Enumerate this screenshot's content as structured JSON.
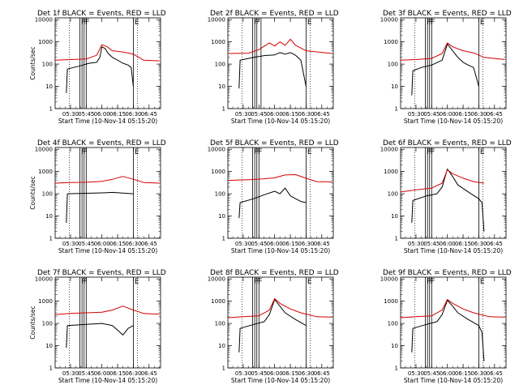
{
  "figure": {
    "colors": {
      "events": "#000000",
      "lld": "#d40000",
      "axes": "#000000",
      "background": "#ffffff"
    }
  },
  "chart_data": [
    {
      "type": "line",
      "title": "Det 1f BLACK = Events, RED = LLD",
      "xlabel": "Start Time (10-Nov-14 05:15:20)",
      "ylabel": "Counts/sec",
      "x_ticks": [
        "05:30",
        "05:45",
        "06:00",
        "06:15",
        "06:30",
        "06:45"
      ],
      "y_ticks": [
        "1",
        "10",
        "100",
        "1000",
        "10000"
      ],
      "xlim": [
        "05:15:20",
        "06:56:00"
      ],
      "ylim": [
        1,
        12000
      ],
      "y_scale": "log",
      "grid": false,
      "flag_labels": [
        "F",
        "F",
        "F",
        "E"
      ],
      "flag_lines": [
        "05:39",
        "05:41",
        "05:43",
        "05:45",
        "06:30"
      ],
      "dotted_lines": [
        "05:29",
        "06:34"
      ],
      "series": [
        {
          "name": "BLACK = Events",
          "color": "#000000",
          "x": [
            "05:26",
            "05:27",
            "05:30",
            "05:38",
            "05:48",
            "05:55",
            "05:58",
            "06:00",
            "06:03",
            "06:06",
            "06:10",
            "06:15",
            "06:20",
            "06:25",
            "06:28",
            "06:30"
          ],
          "y": [
            5,
            60,
            65,
            80,
            110,
            120,
            200,
            600,
            500,
            300,
            200,
            150,
            110,
            90,
            70,
            10
          ]
        },
        {
          "name": "RED = LLD",
          "color": "#d40000",
          "x": [
            "05:15",
            "05:30",
            "05:45",
            "05:55",
            "06:00",
            "06:05",
            "06:10",
            "06:20",
            "06:30",
            "06:40",
            "06:55"
          ],
          "y": [
            150,
            160,
            170,
            250,
            750,
            600,
            400,
            350,
            280,
            150,
            140
          ]
        }
      ]
    },
    {
      "type": "line",
      "title": "Det 2f BLACK = Events, RED = LLD",
      "xlabel": "Start Time (10-Nov-14 05:15:20)",
      "ylabel": "",
      "x_ticks": [
        "05:30",
        "05:45",
        "06:00",
        "06:15",
        "06:30",
        "06:45"
      ],
      "y_ticks": [
        "1",
        "10",
        "100",
        "1000",
        "10000"
      ],
      "xlim": [
        "05:15:20",
        "06:56:00"
      ],
      "ylim": [
        1,
        12000
      ],
      "y_scale": "log",
      "grid": false,
      "flag_labels": [
        "F",
        "F",
        "E"
      ],
      "flag_lines": [
        "05:39",
        "05:41",
        "05:43",
        "05:47",
        "06:30"
      ],
      "dotted_lines": [
        "05:29",
        "06:34"
      ],
      "series": [
        {
          "name": "BLACK = Events",
          "color": "#000000",
          "x": [
            "05:26",
            "05:27",
            "05:40",
            "05:50",
            "06:00",
            "06:05",
            "06:10",
            "06:15",
            "06:20",
            "06:25",
            "06:30"
          ],
          "y": [
            8,
            150,
            200,
            240,
            260,
            330,
            280,
            330,
            250,
            150,
            10
          ]
        },
        {
          "name": "RED = LLD",
          "color": "#d40000",
          "x": [
            "05:15",
            "05:35",
            "05:45",
            "05:55",
            "06:00",
            "06:05",
            "06:10",
            "06:15",
            "06:20",
            "06:30",
            "06:55"
          ],
          "y": [
            300,
            310,
            450,
            900,
            650,
            1000,
            700,
            1300,
            700,
            400,
            300
          ]
        }
      ]
    },
    {
      "type": "line",
      "title": "Det 3f BLACK = Events, RED = LLD",
      "xlabel": "Start Time (10-Nov-14 05:15:20)",
      "ylabel": "",
      "x_ticks": [
        "05:30",
        "05:45",
        "06:00",
        "06:15",
        "06:30",
        "06:45"
      ],
      "y_ticks": [
        "1",
        "10",
        "100",
        "1000",
        "10000"
      ],
      "xlim": [
        "05:15:20",
        "06:56:00"
      ],
      "ylim": [
        1,
        12000
      ],
      "y_scale": "log",
      "grid": false,
      "flag_labels": [
        "F",
        "F",
        "F",
        "E"
      ],
      "flag_lines": [
        "05:39",
        "05:41",
        "05:43",
        "05:45",
        "06:30"
      ],
      "dotted_lines": [
        "05:29",
        "06:34"
      ],
      "series": [
        {
          "name": "BLACK = Events",
          "color": "#000000",
          "x": [
            "05:26",
            "05:27",
            "05:35",
            "05:45",
            "05:55",
            "06:00",
            "06:05",
            "06:10",
            "06:15",
            "06:20",
            "06:25",
            "06:30"
          ],
          "y": [
            4,
            50,
            70,
            90,
            150,
            800,
            400,
            200,
            120,
            90,
            70,
            10
          ]
        },
        {
          "name": "RED = LLD",
          "color": "#d40000",
          "x": [
            "05:15",
            "05:30",
            "05:45",
            "05:55",
            "06:00",
            "06:05",
            "06:15",
            "06:25",
            "06:35",
            "06:55"
          ],
          "y": [
            150,
            160,
            180,
            300,
            900,
            600,
            400,
            320,
            200,
            160
          ]
        }
      ]
    },
    {
      "type": "line",
      "title": "Det 4f BLACK = Events, RED = LLD",
      "xlabel": "Start Time (10-Nov-14 05:15:20)",
      "ylabel": "Counts/sec",
      "x_ticks": [
        "05:30",
        "05:45",
        "06:00",
        "06:15",
        "06:30",
        "06:45"
      ],
      "y_ticks": [
        "1",
        "10",
        "100",
        "1000",
        "10000"
      ],
      "xlim": [
        "05:15:20",
        "06:56:00"
      ],
      "ylim": [
        1,
        12000
      ],
      "y_scale": "log",
      "grid": false,
      "flag_labels": [
        "F",
        "F",
        "E"
      ],
      "flag_lines": [
        "05:39",
        "05:41",
        "05:43",
        "05:45",
        "06:30"
      ],
      "dotted_lines": [
        "05:29",
        "06:34"
      ],
      "series": [
        {
          "name": "BLACK = Events",
          "color": "#000000",
          "x": [
            "05:26",
            "05:27",
            "05:45",
            "06:00",
            "06:10",
            "06:20",
            "06:30"
          ],
          "y": [
            5,
            100,
            105,
            110,
            115,
            108,
            100
          ]
        },
        {
          "name": "RED = LLD",
          "color": "#d40000",
          "x": [
            "05:15",
            "05:30",
            "05:45",
            "06:00",
            "06:10",
            "06:20",
            "06:30",
            "06:40",
            "06:55"
          ],
          "y": [
            300,
            320,
            330,
            360,
            450,
            600,
            450,
            320,
            300
          ]
        }
      ]
    },
    {
      "type": "line",
      "title": "Det 5f BLACK = Events, RED = LLD",
      "xlabel": "Start Time (10-Nov-14 05:15:20)",
      "ylabel": "",
      "x_ticks": [
        "05:30",
        "05:45",
        "06:00",
        "06:15",
        "06:30",
        "06:45"
      ],
      "y_ticks": [
        "1",
        "10",
        "100",
        "1000",
        "10000"
      ],
      "xlim": [
        "05:15:20",
        "06:56:00"
      ],
      "ylim": [
        1,
        12000
      ],
      "y_scale": "log",
      "grid": false,
      "flag_labels": [
        "F",
        "F",
        "F",
        "E"
      ],
      "flag_lines": [
        "05:39",
        "05:41",
        "05:43",
        "05:45",
        "06:30"
      ],
      "dotted_lines": [
        "05:29",
        "06:34"
      ],
      "series": [
        {
          "name": "BLACK = Events",
          "color": "#000000",
          "x": [
            "05:26",
            "05:27",
            "05:40",
            "05:50",
            "06:00",
            "06:05",
            "06:10",
            "06:15",
            "06:20",
            "06:25",
            "06:30"
          ],
          "y": [
            8,
            40,
            60,
            90,
            130,
            100,
            180,
            80,
            60,
            45,
            40
          ]
        },
        {
          "name": "RED = LLD",
          "color": "#d40000",
          "x": [
            "05:15",
            "05:35",
            "05:50",
            "06:00",
            "06:10",
            "06:20",
            "06:30",
            "06:40",
            "06:55"
          ],
          "y": [
            400,
            430,
            470,
            520,
            700,
            720,
            500,
            350,
            340
          ]
        }
      ]
    },
    {
      "type": "line",
      "title": "Det 6f BLACK = Events, RED = LLD",
      "xlabel": "Start Time (10-Nov-14 05:15:20)",
      "ylabel": "",
      "x_ticks": [
        "05:30",
        "05:45",
        "06:00",
        "06:15",
        "06:30",
        "06:45"
      ],
      "y_ticks": [
        "1",
        "10",
        "100",
        "1000",
        "10000"
      ],
      "xlim": [
        "05:15:20",
        "06:56:00"
      ],
      "ylim": [
        1,
        12000
      ],
      "y_scale": "log",
      "grid": false,
      "flag_labels": [
        "F",
        "F",
        "F",
        "E"
      ],
      "flag_lines": [
        "05:39",
        "05:41",
        "05:43",
        "05:45",
        "06:30"
      ],
      "dotted_lines": [
        "05:29",
        "06:34"
      ],
      "series": [
        {
          "name": "BLACK = Events",
          "color": "#000000",
          "x": [
            "05:26",
            "05:27",
            "05:40",
            "05:50",
            "05:55",
            "06:00",
            "06:05",
            "06:10",
            "06:20",
            "06:30",
            "06:33",
            "06:35"
          ],
          "y": [
            5,
            50,
            80,
            100,
            200,
            1300,
            600,
            250,
            120,
            60,
            40,
            2
          ]
        },
        {
          "name": "RED = LLD",
          "color": "#d40000",
          "x": [
            "05:15",
            "05:30",
            "05:45",
            "05:55",
            "06:00",
            "06:05",
            "06:15",
            "06:25",
            "06:35"
          ],
          "y": [
            120,
            150,
            180,
            300,
            1200,
            800,
            500,
            350,
            300
          ]
        }
      ]
    },
    {
      "type": "line",
      "title": "Det 7f BLACK = Events, RED = LLD",
      "xlabel": "Start Time (10-Nov-14 05:15:20)",
      "ylabel": "Counts/sec",
      "x_ticks": [
        "05:30",
        "05:45",
        "06:00",
        "06:15",
        "06:30",
        "06:45"
      ],
      "y_ticks": [
        "1",
        "10",
        "100",
        "1000",
        "10000"
      ],
      "xlim": [
        "05:15:20",
        "06:56:00"
      ],
      "ylim": [
        1,
        12000
      ],
      "y_scale": "log",
      "grid": false,
      "flag_labels": [
        "F",
        "F",
        "E"
      ],
      "flag_lines": [
        "05:39",
        "05:41",
        "05:43",
        "05:45",
        "06:30"
      ],
      "dotted_lines": [
        "05:29",
        "06:34"
      ],
      "series": [
        {
          "name": "BLACK = Events",
          "color": "#000000",
          "x": [
            "05:26",
            "05:27",
            "05:45",
            "06:00",
            "06:10",
            "06:15",
            "06:20",
            "06:25",
            "06:30"
          ],
          "y": [
            8,
            80,
            90,
            100,
            80,
            50,
            30,
            60,
            80
          ]
        },
        {
          "name": "RED = LLD",
          "color": "#d40000",
          "x": [
            "05:15",
            "05:30",
            "05:45",
            "06:00",
            "06:10",
            "06:20",
            "06:30",
            "06:40",
            "06:55"
          ],
          "y": [
            250,
            280,
            300,
            320,
            400,
            600,
            400,
            280,
            260
          ]
        }
      ]
    },
    {
      "type": "line",
      "title": "Det 8f BLACK = Events, RED = LLD",
      "xlabel": "Start Time (10-Nov-14 05:15:20)",
      "ylabel": "",
      "x_ticks": [
        "05:30",
        "05:45",
        "06:00",
        "06:15",
        "06:30",
        "06:45"
      ],
      "y_ticks": [
        "1",
        "10",
        "100",
        "1000",
        "10000"
      ],
      "xlim": [
        "05:15:20",
        "06:56:00"
      ],
      "ylim": [
        1,
        12000
      ],
      "y_scale": "log",
      "grid": false,
      "flag_labels": [
        "F",
        "F",
        "F",
        "E"
      ],
      "flag_lines": [
        "05:39",
        "05:41",
        "05:43",
        "05:45",
        "06:30"
      ],
      "dotted_lines": [
        "05:29",
        "06:34"
      ],
      "series": [
        {
          "name": "BLACK = Events",
          "color": "#000000",
          "x": [
            "05:26",
            "05:27",
            "05:40",
            "05:50",
            "05:55",
            "06:00",
            "06:05",
            "06:10",
            "06:20",
            "06:30"
          ],
          "y": [
            5,
            60,
            90,
            120,
            250,
            1200,
            600,
            300,
            150,
            80
          ]
        },
        {
          "name": "RED = LLD",
          "color": "#d40000",
          "x": [
            "05:15",
            "05:30",
            "05:45",
            "05:55",
            "06:00",
            "06:05",
            "06:15",
            "06:25",
            "06:40",
            "06:55"
          ],
          "y": [
            180,
            200,
            220,
            400,
            1300,
            800,
            450,
            300,
            200,
            190
          ]
        }
      ]
    },
    {
      "type": "line",
      "title": "Det 9f BLACK = Events, RED = LLD",
      "xlabel": "Start Time (10-Nov-14 05:15:20)",
      "ylabel": "",
      "x_ticks": [
        "05:30",
        "05:45",
        "06:00",
        "06:15",
        "06:30",
        "06:45"
      ],
      "y_ticks": [
        "1",
        "10",
        "100",
        "1000",
        "10000"
      ],
      "xlim": [
        "05:15:20",
        "06:56:00"
      ],
      "ylim": [
        1,
        12000
      ],
      "y_scale": "log",
      "grid": false,
      "flag_labels": [
        "F",
        "F",
        "F",
        "E"
      ],
      "flag_lines": [
        "05:39",
        "05:41",
        "05:43",
        "05:45",
        "06:30"
      ],
      "dotted_lines": [
        "05:29",
        "06:34"
      ],
      "series": [
        {
          "name": "BLACK = Events",
          "color": "#000000",
          "x": [
            "05:26",
            "05:27",
            "05:40",
            "05:50",
            "05:55",
            "06:00",
            "06:05",
            "06:10",
            "06:20",
            "06:30",
            "06:33",
            "06:35"
          ],
          "y": [
            5,
            60,
            90,
            120,
            250,
            1100,
            600,
            300,
            150,
            80,
            40,
            2
          ]
        },
        {
          "name": "RED = LLD",
          "color": "#d40000",
          "x": [
            "05:15",
            "05:30",
            "05:45",
            "05:55",
            "06:00",
            "06:05",
            "06:15",
            "06:25",
            "06:40",
            "06:55"
          ],
          "y": [
            180,
            200,
            220,
            400,
            1200,
            800,
            450,
            300,
            200,
            190
          ]
        }
      ]
    }
  ]
}
